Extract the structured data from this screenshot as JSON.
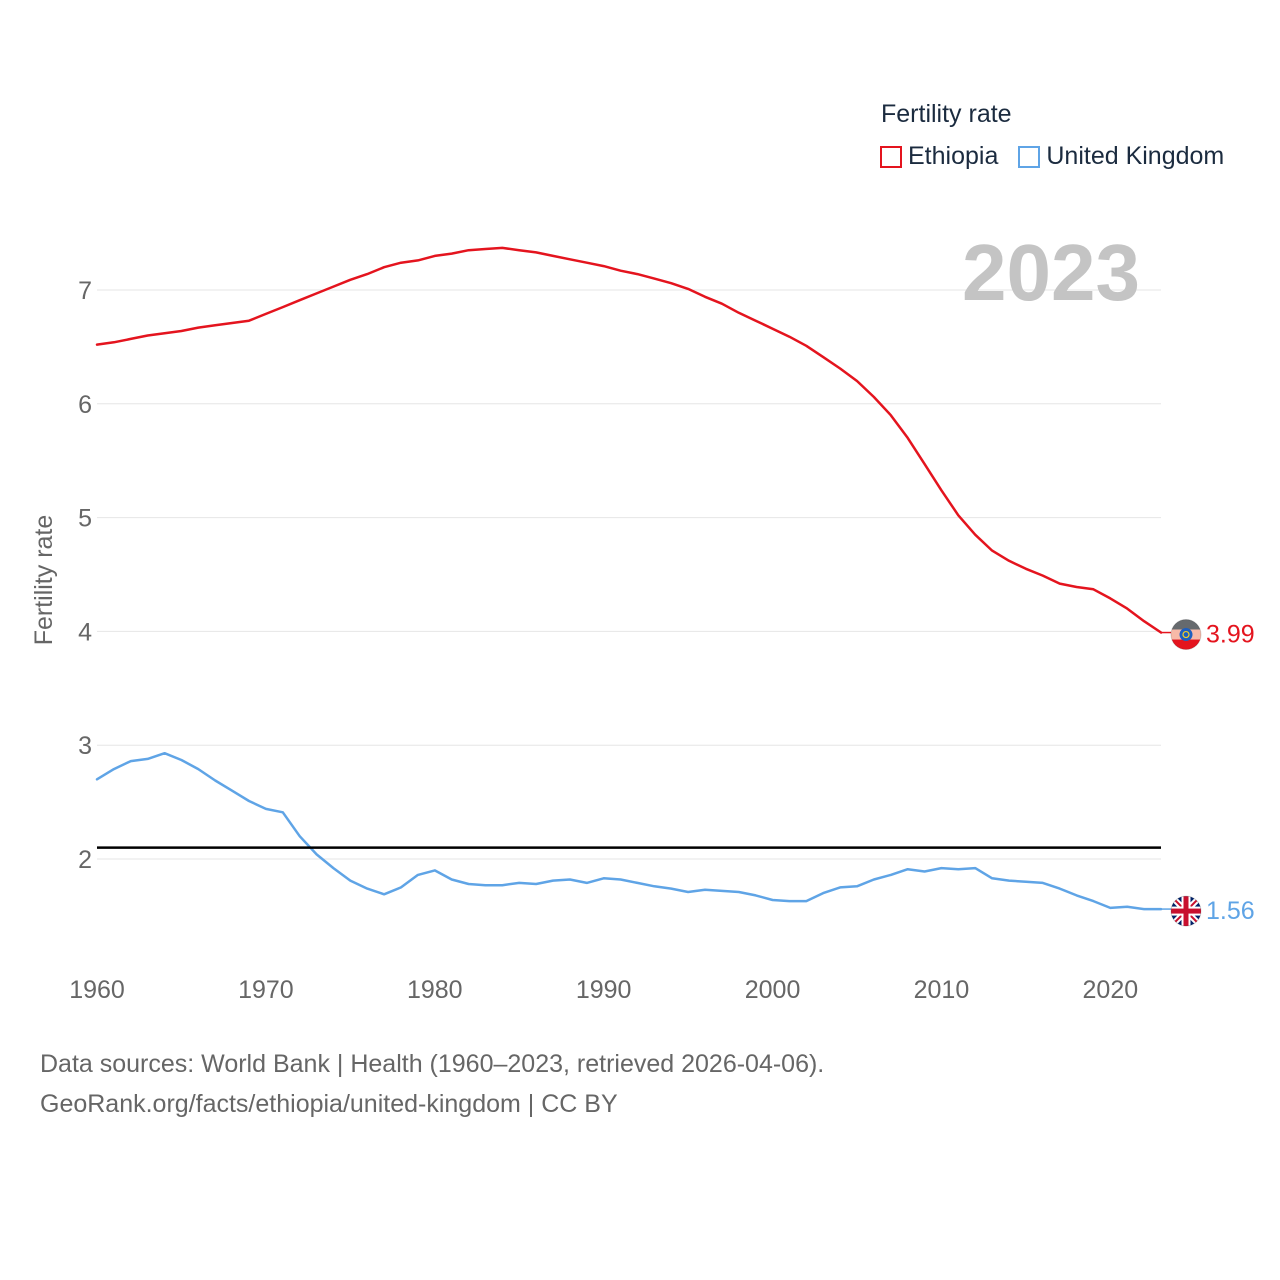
{
  "legend": {
    "title": "Fertility rate",
    "items": [
      {
        "label": "Ethiopia",
        "color": "#e4141e"
      },
      {
        "label": "United Kingdom",
        "color": "#5fa4e6"
      }
    ]
  },
  "footer": {
    "line1": "Data sources: World Bank | Health (1960–2023, retrieved 2026-04-06).",
    "line2": "GeoRank.org/facts/ethiopia/united-kingdom | CC BY"
  },
  "chart_data": {
    "type": "line",
    "title": "Fertility rate",
    "year_label": "2023",
    "ylabel": "Fertility rate",
    "xlabel": "",
    "xlim": [
      1960,
      2023
    ],
    "ylim": [
      1.0,
      7.6
    ],
    "x_ticks": [
      1960,
      1970,
      1980,
      1990,
      2000,
      2010,
      2020
    ],
    "y_ticks": [
      2,
      3,
      4,
      5,
      6,
      7
    ],
    "grid": true,
    "legend_position": "top-right",
    "reference_line": {
      "y": 2.1,
      "color": "#000000"
    },
    "x": [
      1960,
      1961,
      1962,
      1963,
      1964,
      1965,
      1966,
      1967,
      1968,
      1969,
      1970,
      1971,
      1972,
      1973,
      1974,
      1975,
      1976,
      1977,
      1978,
      1979,
      1980,
      1981,
      1982,
      1983,
      1984,
      1985,
      1986,
      1987,
      1988,
      1989,
      1990,
      1991,
      1992,
      1993,
      1994,
      1995,
      1996,
      1997,
      1998,
      1999,
      2000,
      2001,
      2002,
      2003,
      2004,
      2005,
      2006,
      2007,
      2008,
      2009,
      2010,
      2011,
      2012,
      2013,
      2014,
      2015,
      2016,
      2017,
      2018,
      2019,
      2020,
      2021,
      2022,
      2023
    ],
    "series": [
      {
        "name": "Ethiopia",
        "color": "#e4141e",
        "end_label": "3.99",
        "flag_icon": "ethiopia-flag-icon",
        "values": [
          6.52,
          6.54,
          6.57,
          6.6,
          6.62,
          6.64,
          6.67,
          6.69,
          6.71,
          6.73,
          6.79,
          6.85,
          6.91,
          6.97,
          7.03,
          7.09,
          7.14,
          7.2,
          7.24,
          7.26,
          7.3,
          7.32,
          7.35,
          7.36,
          7.37,
          7.35,
          7.33,
          7.3,
          7.27,
          7.24,
          7.21,
          7.17,
          7.14,
          7.1,
          7.06,
          7.01,
          6.94,
          6.88,
          6.8,
          6.73,
          6.66,
          6.59,
          6.51,
          6.41,
          6.31,
          6.2,
          6.06,
          5.9,
          5.7,
          5.47,
          5.24,
          5.02,
          4.85,
          4.71,
          4.62,
          4.55,
          4.49,
          4.42,
          4.39,
          4.37,
          4.29,
          4.2,
          4.09,
          3.99
        ]
      },
      {
        "name": "United Kingdom",
        "color": "#5fa4e6",
        "end_label": "1.56",
        "flag_icon": "uk-flag-icon",
        "values": [
          2.7,
          2.79,
          2.86,
          2.88,
          2.93,
          2.87,
          2.79,
          2.69,
          2.6,
          2.51,
          2.44,
          2.41,
          2.2,
          2.04,
          1.92,
          1.81,
          1.74,
          1.69,
          1.75,
          1.86,
          1.9,
          1.82,
          1.78,
          1.77,
          1.77,
          1.79,
          1.78,
          1.81,
          1.82,
          1.79,
          1.83,
          1.82,
          1.79,
          1.76,
          1.74,
          1.71,
          1.73,
          1.72,
          1.71,
          1.68,
          1.64,
          1.63,
          1.63,
          1.7,
          1.75,
          1.76,
          1.82,
          1.86,
          1.91,
          1.89,
          1.92,
          1.91,
          1.92,
          1.83,
          1.81,
          1.8,
          1.79,
          1.74,
          1.68,
          1.63,
          1.57,
          1.58,
          1.56,
          1.56
        ]
      }
    ]
  }
}
